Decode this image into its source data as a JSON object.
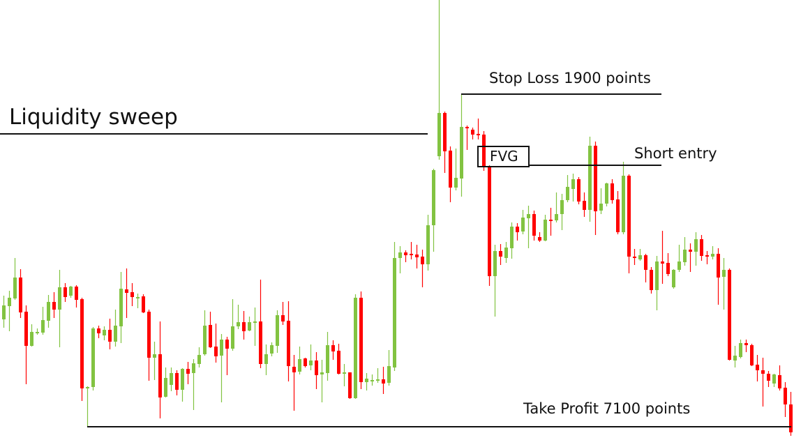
{
  "chart_data": {
    "type": "candlestick",
    "title": "",
    "xlabel": "",
    "ylabel": "",
    "ylim": [
      69,
      700
    ],
    "grid": false,
    "colors": {
      "up": "#82c341",
      "down": "#ff0000",
      "annotation": "#111111"
    },
    "candles": [
      [
        242,
        276,
        230,
        262
      ],
      [
        261,
        283,
        225,
        273
      ],
      [
        272,
        330,
        270,
        302
      ],
      [
        302,
        314,
        244,
        252
      ],
      [
        253,
        262,
        149,
        204
      ],
      [
        204,
        235,
        203,
        224
      ],
      [
        224,
        229,
        220,
        224
      ],
      [
        223,
        260,
        220,
        241
      ],
      [
        240,
        277,
        230,
        267
      ],
      [
        267,
        281,
        244,
        256
      ],
      [
        256,
        313,
        202,
        288
      ],
      [
        288,
        294,
        267,
        274
      ],
      [
        276,
        290,
        273,
        289
      ],
      [
        289,
        291,
        259,
        270
      ],
      [
        271,
        273,
        125,
        143
      ],
      [
        144,
        146,
        88,
        145
      ],
      [
        145,
        231,
        140,
        229
      ],
      [
        229,
        233,
        215,
        222
      ],
      [
        219,
        232,
        212,
        227
      ],
      [
        227,
        243,
        199,
        210
      ],
      [
        210,
        256,
        203,
        233
      ],
      [
        232,
        310,
        208,
        286
      ],
      [
        285,
        315,
        244,
        280
      ],
      [
        281,
        294,
        261,
        274
      ],
      [
        274,
        279,
        258,
        274
      ],
      [
        275,
        278,
        251,
        252
      ],
      [
        253,
        256,
        154,
        187
      ],
      [
        187,
        210,
        155,
        192
      ],
      [
        192,
        239,
        100,
        130
      ],
      [
        131,
        173,
        130,
        158
      ],
      [
        148,
        173,
        139,
        165
      ],
      [
        165,
        169,
        133,
        141
      ],
      [
        141,
        172,
        124,
        171
      ],
      [
        171,
        181,
        149,
        164
      ],
      [
        165,
        185,
        112,
        179
      ],
      [
        178,
        202,
        173,
        191
      ],
      [
        192,
        255,
        190,
        233
      ],
      [
        234,
        253,
        201,
        202
      ],
      [
        203,
        236,
        180,
        189
      ],
      [
        190,
        221,
        123,
        213
      ],
      [
        213,
        217,
        162,
        200
      ],
      [
        200,
        271,
        197,
        232
      ],
      [
        232,
        263,
        228,
        238
      ],
      [
        238,
        254,
        213,
        225
      ],
      [
        226,
        246,
        225,
        238
      ],
      [
        238,
        259,
        204,
        239
      ],
      [
        239,
        299,
        172,
        178
      ],
      [
        178,
        206,
        162,
        192
      ],
      [
        193,
        209,
        189,
        205
      ],
      [
        204,
        255,
        194,
        248
      ],
      [
        248,
        267,
        234,
        239
      ],
      [
        240,
        268,
        153,
        175
      ],
      [
        174,
        191,
        111,
        166
      ],
      [
        167,
        203,
        163,
        185
      ],
      [
        186,
        187,
        173,
        175
      ],
      [
        176,
        206,
        169,
        183
      ],
      [
        183,
        195,
        142,
        162
      ],
      [
        163,
        184,
        123,
        166
      ],
      [
        165,
        224,
        154,
        205
      ],
      [
        205,
        212,
        184,
        196
      ],
      [
        197,
        207,
        163,
        164
      ],
      [
        166,
        178,
        146,
        166
      ],
      [
        166,
        166,
        128,
        129
      ],
      [
        129,
        278,
        128,
        273
      ],
      [
        273,
        282,
        142,
        152
      ],
      [
        152,
        165,
        140,
        157
      ],
      [
        153,
        163,
        147,
        155
      ],
      [
        155,
        172,
        151,
        156
      ],
      [
        156,
        174,
        135,
        150
      ],
      [
        151,
        198,
        147,
        175
      ],
      [
        173,
        353,
        168,
        330
      ],
      [
        330,
        347,
        308,
        338
      ],
      [
        338,
        341,
        324,
        334
      ],
      [
        336,
        353,
        328,
        334
      ],
      [
        335,
        349,
        315,
        331
      ],
      [
        332,
        342,
        288,
        321
      ],
      [
        321,
        392,
        312,
        377
      ],
      [
        377,
        458,
        339,
        456
      ],
      [
        476,
        700,
        471,
        538
      ],
      [
        538,
        540,
        452,
        483
      ],
      [
        484,
        490,
        410,
        431
      ],
      [
        431,
        487,
        427,
        445
      ],
      [
        444,
        564,
        418,
        518
      ],
      [
        518,
        520,
        485,
        516
      ],
      [
        514,
        517,
        500,
        507
      ],
      [
        508,
        530,
        500,
        507
      ],
      [
        507,
        512,
        455,
        460
      ],
      [
        461,
        463,
        290,
        304
      ],
      [
        304,
        349,
        246,
        340
      ],
      [
        340,
        350,
        320,
        332
      ],
      [
        330,
        353,
        323,
        345
      ],
      [
        344,
        381,
        329,
        375
      ],
      [
        375,
        380,
        355,
        367
      ],
      [
        368,
        399,
        364,
        388
      ],
      [
        387,
        405,
        344,
        393
      ],
      [
        393,
        398,
        355,
        362
      ],
      [
        360,
        367,
        353,
        355
      ],
      [
        355,
        392,
        354,
        385
      ],
      [
        385,
        402,
        362,
        383
      ],
      [
        384,
        424,
        381,
        393
      ],
      [
        393,
        422,
        370,
        413
      ],
      [
        413,
        449,
        410,
        432
      ],
      [
        429,
        451,
        411,
        443
      ],
      [
        443,
        446,
        407,
        411
      ],
      [
        412,
        424,
        389,
        399
      ],
      [
        399,
        504,
        382,
        491
      ],
      [
        491,
        497,
        363,
        397
      ],
      [
        398,
        430,
        393,
        408
      ],
      [
        408,
        438,
        404,
        437
      ],
      [
        437,
        443,
        408,
        413
      ],
      [
        414,
        426,
        364,
        367
      ],
      [
        367,
        468,
        364,
        448
      ],
      [
        448,
        450,
        308,
        332
      ],
      [
        332,
        343,
        320,
        330
      ],
      [
        328,
        343,
        326,
        334
      ],
      [
        334,
        336,
        295,
        313
      ],
      [
        313,
        317,
        279,
        284
      ],
      [
        284,
        333,
        255,
        325
      ],
      [
        325,
        369,
        293,
        322
      ],
      [
        323,
        337,
        304,
        307
      ],
      [
        288,
        314,
        286,
        313
      ],
      [
        313,
        349,
        310,
        325
      ],
      [
        324,
        360,
        319,
        342
      ],
      [
        342,
        351,
        310,
        339
      ],
      [
        339,
        367,
        319,
        357
      ],
      [
        357,
        363,
        326,
        333
      ],
      [
        334,
        340,
        321,
        333
      ],
      [
        332,
        347,
        328,
        336
      ],
      [
        336,
        344,
        263,
        302
      ],
      [
        303,
        330,
        256,
        313
      ],
      [
        313,
        315,
        183,
        184
      ],
      [
        183,
        204,
        173,
        190
      ],
      [
        188,
        213,
        186,
        208
      ],
      [
        208,
        213,
        195,
        205
      ],
      [
        205,
        207,
        175,
        176
      ],
      [
        177,
        191,
        153,
        169
      ],
      [
        169,
        187,
        117,
        164
      ],
      [
        164,
        168,
        145,
        154
      ],
      [
        150,
        164,
        145,
        163
      ],
      [
        162,
        176,
        140,
        143
      ],
      [
        144,
        152,
        102,
        120
      ],
      [
        120,
        138,
        75,
        80
      ]
    ],
    "annotations": {
      "liquidity_sweep": {
        "label": "Liquidity sweep",
        "level": 508
      },
      "stop_loss": {
        "label": "Stop Loss 1900 points",
        "level": 565
      },
      "fvg": {
        "label": "FVG",
        "top": 491,
        "bottom": 463
      },
      "short_entry": {
        "label": "Short entry",
        "level": 463
      },
      "take_profit": {
        "label": "Take Profit 7100 points",
        "level": 88
      }
    }
  }
}
